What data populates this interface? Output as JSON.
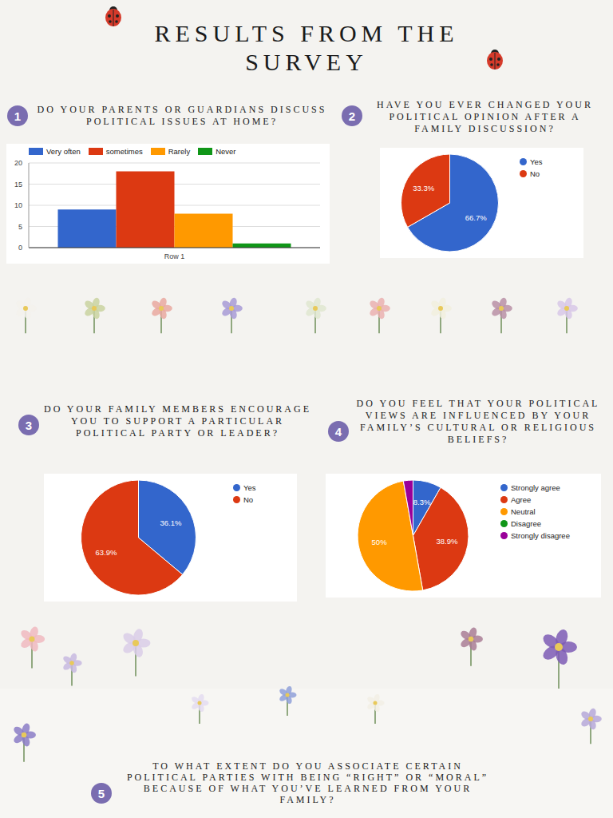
{
  "title": "RESULTS FROM THE SURVEY",
  "panel_numbers": [
    1,
    2,
    3,
    4,
    5
  ],
  "chart_data": [
    {
      "type": "bar",
      "title": "DO YOUR PARENTS OR GUARDIANS DISCUSS POLITICAL ISSUES AT HOME?",
      "categories": [
        "Row 1"
      ],
      "series": [
        {
          "name": "Very often",
          "color": "#3366cc",
          "values": [
            9
          ]
        },
        {
          "name": "sometimes",
          "color": "#dc3912",
          "values": [
            18
          ]
        },
        {
          "name": "Rarely",
          "color": "#ff9900",
          "values": [
            8
          ]
        },
        {
          "name": "Never",
          "color": "#109618",
          "values": [
            1
          ]
        }
      ],
      "ylim": [
        0,
        20
      ],
      "yticks": [
        0,
        5,
        10,
        15,
        20
      ],
      "grid": true,
      "legend": "top"
    },
    {
      "type": "pie",
      "title": "HAVE YOU EVER CHANGED YOUR POLITICAL OPINION AFTER A FAMILY DISCUSSION?",
      "categories": [
        "Yes",
        "No"
      ],
      "values": [
        66.7,
        33.3
      ],
      "value_labels": [
        "66.7%",
        "33.3%"
      ],
      "colors": [
        "#3366cc",
        "#dc3912"
      ],
      "data_labels": true,
      "legend": "right"
    },
    {
      "type": "pie",
      "title": "DO YOUR FAMILY MEMBERS ENCOURAGE YOU TO SUPPORT A PARTICULAR POLITICAL PARTY OR LEADER?",
      "categories": [
        "Yes",
        "No"
      ],
      "values": [
        36.1,
        63.9
      ],
      "value_labels": [
        "36.1%",
        "63.9%"
      ],
      "colors": [
        "#3366cc",
        "#dc3912"
      ],
      "data_labels": true,
      "legend": "right"
    },
    {
      "type": "pie",
      "title": "DO YOU FEEL THAT YOUR POLITICAL VIEWS ARE INFLUENCED BY YOUR FAMILY’S CULTURAL OR RELIGIOUS BELIEFS?",
      "categories": [
        "Strongly agree",
        "Agree",
        "Neutral",
        "Disagree",
        "Strongly disagree"
      ],
      "values": [
        8.3,
        38.9,
        50,
        0,
        2.8
      ],
      "value_labels": [
        "8.3%",
        "38.9%",
        "50%",
        null,
        null
      ],
      "colors": [
        "#3366cc",
        "#dc3912",
        "#ff9900",
        "#109618",
        "#990099"
      ],
      "data_labels": true,
      "legend": "right"
    }
  ],
  "closing_question": "TO WHAT EXTENT DO YOU ASSOCIATE CERTAIN POLITICAL PARTIES WITH BEING “RIGHT” OR “MORAL” BECAUSE OF WHAT YOU’VE LEARNED FROM YOUR FAMILY?"
}
